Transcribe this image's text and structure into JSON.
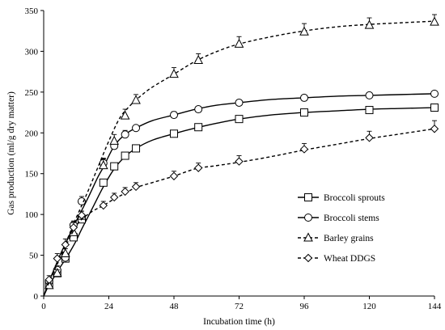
{
  "chart_data": {
    "type": "line",
    "xlabel": "Incubation time (h)",
    "ylabel": "Gas production (ml/g dry matter)",
    "xlim": [
      0,
      144
    ],
    "ylim": [
      0,
      350
    ],
    "xticks": [
      0,
      24,
      48,
      72,
      96,
      120,
      144
    ],
    "yticks": [
      0,
      50,
      100,
      150,
      200,
      250,
      300,
      350
    ],
    "grid": false,
    "legend_position": "center-right",
    "series": [
      {
        "name": "Broccoli sprouts",
        "marker": "square",
        "line_style": "solid",
        "fit": [
          [
            0,
            0
          ],
          [
            2,
            14
          ],
          [
            4,
            24
          ],
          [
            6,
            35
          ],
          [
            8,
            45
          ],
          [
            10,
            56
          ],
          [
            12,
            68
          ],
          [
            14,
            82
          ],
          [
            18,
            108
          ],
          [
            22,
            134
          ],
          [
            26,
            156
          ],
          [
            30,
            171
          ],
          [
            34,
            181
          ],
          [
            40,
            191
          ],
          [
            48,
            199
          ],
          [
            56,
            206
          ],
          [
            64,
            212
          ],
          [
            72,
            217
          ],
          [
            84,
            222
          ],
          [
            96,
            225
          ],
          [
            108,
            227
          ],
          [
            120,
            229
          ],
          [
            132,
            230
          ],
          [
            144,
            231
          ]
        ],
        "points": [
          {
            "x": 2,
            "y": 15,
            "err": 4
          },
          {
            "x": 5,
            "y": 28,
            "err": 5
          },
          {
            "x": 8,
            "y": 46,
            "err": 5
          },
          {
            "x": 11,
            "y": 72,
            "err": 5
          },
          {
            "x": 14,
            "y": 94,
            "err": 5
          },
          {
            "x": 22,
            "y": 139,
            "err": 0
          },
          {
            "x": 26,
            "y": 159,
            "err": 0
          },
          {
            "x": 30,
            "y": 172,
            "err": 0
          },
          {
            "x": 34,
            "y": 181,
            "err": 0
          },
          {
            "x": 48,
            "y": 199,
            "err": 0
          },
          {
            "x": 57,
            "y": 207,
            "err": 0
          },
          {
            "x": 72,
            "y": 217,
            "err": 4
          },
          {
            "x": 96,
            "y": 225,
            "err": 3
          },
          {
            "x": 120,
            "y": 228,
            "err": 4
          },
          {
            "x": 144,
            "y": 231,
            "err": 3
          }
        ]
      },
      {
        "name": "Broccoli stems",
        "marker": "circle",
        "line_style": "solid",
        "fit": [
          [
            0,
            0
          ],
          [
            2,
            18
          ],
          [
            4,
            34
          ],
          [
            6,
            50
          ],
          [
            8,
            64
          ],
          [
            10,
            78
          ],
          [
            12,
            92
          ],
          [
            16,
            118
          ],
          [
            20,
            146
          ],
          [
            22,
            158
          ],
          [
            26,
            184
          ],
          [
            30,
            198
          ],
          [
            34,
            206
          ],
          [
            40,
            215
          ],
          [
            48,
            222
          ],
          [
            56,
            229
          ],
          [
            64,
            234
          ],
          [
            72,
            237
          ],
          [
            84,
            241
          ],
          [
            96,
            243
          ],
          [
            108,
            245
          ],
          [
            120,
            246
          ],
          [
            132,
            247
          ],
          [
            144,
            248
          ]
        ],
        "points": [
          {
            "x": 2,
            "y": 18,
            "err": 3
          },
          {
            "x": 5,
            "y": 32,
            "err": 5
          },
          {
            "x": 8,
            "y": 47,
            "err": 5
          },
          {
            "x": 11,
            "y": 87,
            "err": 5
          },
          {
            "x": 14,
            "y": 116,
            "err": 6
          },
          {
            "x": 22,
            "y": 163,
            "err": 6
          },
          {
            "x": 26,
            "y": 184,
            "err": 6
          },
          {
            "x": 30,
            "y": 198,
            "err": 5
          },
          {
            "x": 34,
            "y": 206,
            "err": 3
          },
          {
            "x": 48,
            "y": 222,
            "err": 4
          },
          {
            "x": 57,
            "y": 229,
            "err": 3
          },
          {
            "x": 72,
            "y": 237,
            "err": 3
          },
          {
            "x": 96,
            "y": 243,
            "err": 3
          },
          {
            "x": 120,
            "y": 246,
            "err": 3
          },
          {
            "x": 144,
            "y": 248,
            "err": 2
          }
        ]
      },
      {
        "name": "Barley grains",
        "marker": "triangle",
        "line_style": "dashed",
        "fit": [
          [
            0,
            0
          ],
          [
            2,
            16
          ],
          [
            4,
            32
          ],
          [
            6,
            48
          ],
          [
            8,
            64
          ],
          [
            10,
            80
          ],
          [
            12,
            96
          ],
          [
            16,
            126
          ],
          [
            20,
            158
          ],
          [
            24,
            190
          ],
          [
            28,
            218
          ],
          [
            32,
            234
          ],
          [
            36,
            246
          ],
          [
            40,
            256
          ],
          [
            48,
            272
          ],
          [
            56,
            288
          ],
          [
            64,
            300
          ],
          [
            72,
            309
          ],
          [
            84,
            318
          ],
          [
            96,
            325
          ],
          [
            108,
            330
          ],
          [
            120,
            333
          ],
          [
            132,
            335
          ],
          [
            144,
            337
          ]
        ],
        "points": [
          {
            "x": 2,
            "y": 13,
            "err": 3
          },
          {
            "x": 5,
            "y": 28,
            "err": 4
          },
          {
            "x": 8,
            "y": 52,
            "err": 6
          },
          {
            "x": 11,
            "y": 78,
            "err": 5
          },
          {
            "x": 14,
            "y": 98,
            "err": 6
          },
          {
            "x": 22,
            "y": 160,
            "err": 8
          },
          {
            "x": 26,
            "y": 190,
            "err": 8
          },
          {
            "x": 30,
            "y": 221,
            "err": 8
          },
          {
            "x": 34,
            "y": 240,
            "err": 7
          },
          {
            "x": 48,
            "y": 272,
            "err": 8
          },
          {
            "x": 57,
            "y": 289,
            "err": 8
          },
          {
            "x": 72,
            "y": 309,
            "err": 9
          },
          {
            "x": 96,
            "y": 324,
            "err": 10
          },
          {
            "x": 120,
            "y": 332,
            "err": 9
          },
          {
            "x": 144,
            "y": 336,
            "err": 9
          }
        ]
      },
      {
        "name": "Wheat DDGS",
        "marker": "diamond",
        "line_style": "dashed",
        "fit": [
          [
            0,
            0
          ],
          [
            2,
            17
          ],
          [
            4,
            32
          ],
          [
            6,
            46
          ],
          [
            8,
            60
          ],
          [
            10,
            74
          ],
          [
            12,
            86
          ],
          [
            14,
            94
          ],
          [
            18,
            104
          ],
          [
            22,
            111
          ],
          [
            26,
            119
          ],
          [
            30,
            126
          ],
          [
            34,
            133
          ],
          [
            40,
            139
          ],
          [
            48,
            147
          ],
          [
            56,
            156
          ],
          [
            64,
            160
          ],
          [
            72,
            164
          ],
          [
            84,
            171
          ],
          [
            96,
            179
          ],
          [
            108,
            186
          ],
          [
            120,
            193
          ],
          [
            132,
            199
          ],
          [
            144,
            205
          ]
        ],
        "points": [
          {
            "x": 2,
            "y": 20,
            "err": 5
          },
          {
            "x": 5,
            "y": 46,
            "err": 6
          },
          {
            "x": 8,
            "y": 63,
            "err": 7
          },
          {
            "x": 11,
            "y": 84,
            "err": 6
          },
          {
            "x": 14,
            "y": 99,
            "err": 5
          },
          {
            "x": 22,
            "y": 111,
            "err": 5
          },
          {
            "x": 26,
            "y": 121,
            "err": 5
          },
          {
            "x": 30,
            "y": 128,
            "err": 5
          },
          {
            "x": 34,
            "y": 134,
            "err": 5
          },
          {
            "x": 48,
            "y": 147,
            "err": 6
          },
          {
            "x": 57,
            "y": 157,
            "err": 6
          },
          {
            "x": 72,
            "y": 165,
            "err": 7
          },
          {
            "x": 96,
            "y": 180,
            "err": 7
          },
          {
            "x": 120,
            "y": 194,
            "err": 8
          },
          {
            "x": 144,
            "y": 205,
            "err": 10
          }
        ]
      }
    ]
  }
}
